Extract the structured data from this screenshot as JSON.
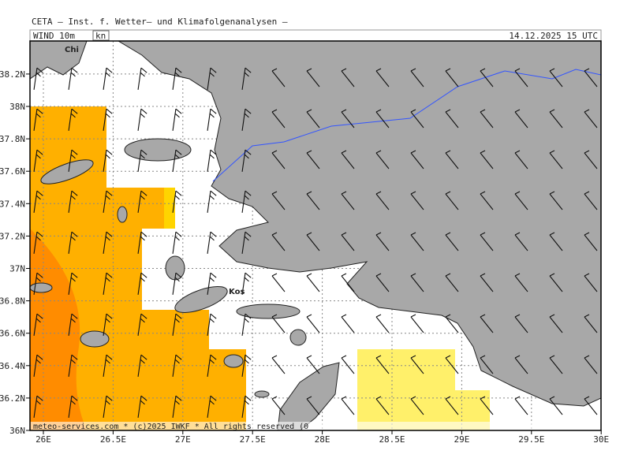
{
  "header": {
    "title": "CETA — Inst. f. Wetter— und Klimafolgenanalysen —",
    "field": "WIND 10m",
    "unit": "kn",
    "valid": "14.12.2025 15 UTC"
  },
  "map": {
    "lat_labels": [
      "36N",
      "36.2N",
      "36.4N",
      "36.6N",
      "36.8N",
      "37N",
      "37.2N",
      "37.4N",
      "37.6N",
      "37.8N",
      "38N",
      "38.2N"
    ],
    "lon_labels": [
      "26E",
      "26.5E",
      "27E",
      "27.5E",
      "28E",
      "28.5E",
      "29E",
      "29.5E",
      "30E"
    ],
    "places": [
      "Chi",
      "Kos"
    ],
    "footer": "meteo-services.com * (c)2025 IWKF * All rights reserved (0"
  }
}
